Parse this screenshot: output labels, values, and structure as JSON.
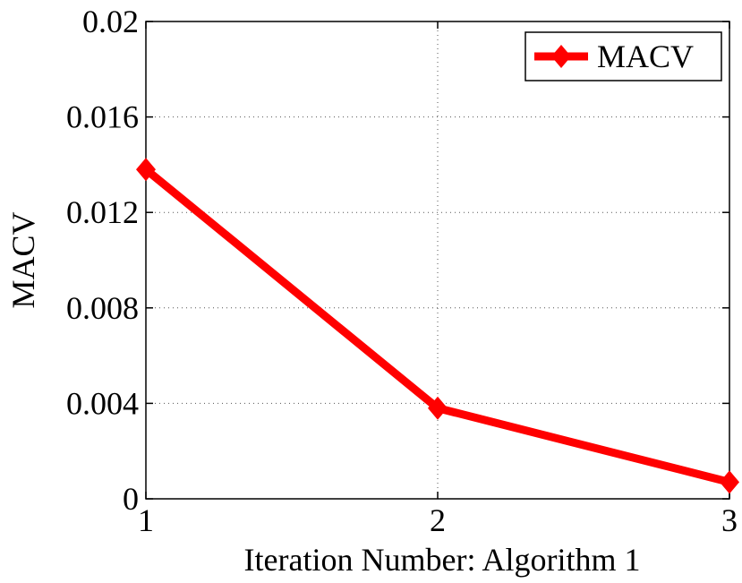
{
  "chart_data": {
    "type": "line",
    "title": "",
    "xlabel": "Iteration  Number: Algorithm 1",
    "ylabel": "MACV",
    "x": [
      1,
      2,
      3
    ],
    "series": [
      {
        "name": "MACV",
        "values": [
          0.0138,
          0.0038,
          0.0007
        ],
        "color": "#ff0000",
        "marker": "diamond"
      }
    ],
    "xlim": [
      1,
      3
    ],
    "ylim": [
      0,
      0.02
    ],
    "xticks": [
      1,
      2,
      3
    ],
    "xtick_labels": [
      "1",
      "2",
      "3"
    ],
    "yticks": [
      0,
      0.004,
      0.008,
      0.012,
      0.016,
      0.02
    ],
    "ytick_labels": [
      "0",
      "0.004",
      "0.008",
      "0.012",
      "0.016",
      "0.02"
    ],
    "grid": true,
    "legend_position": "top-right"
  }
}
